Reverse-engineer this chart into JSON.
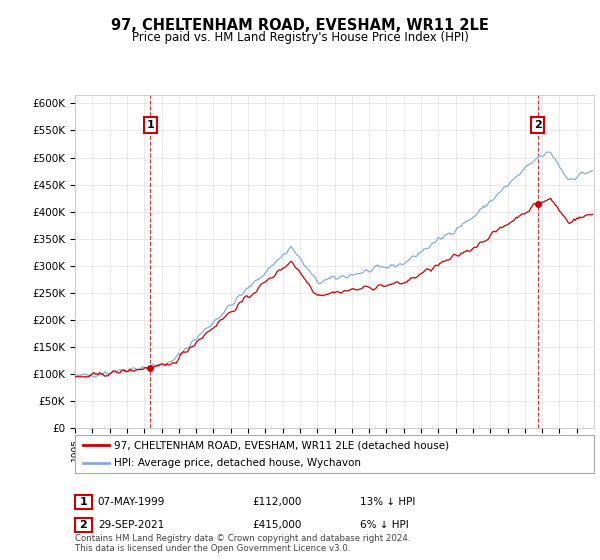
{
  "title": "97, CHELTENHAM ROAD, EVESHAM, WR11 2LE",
  "subtitle": "Price paid vs. HM Land Registry's House Price Index (HPI)",
  "ylabel_ticks": [
    "£0",
    "£50K",
    "£100K",
    "£150K",
    "£200K",
    "£250K",
    "£300K",
    "£350K",
    "£400K",
    "£450K",
    "£500K",
    "£550K",
    "£600K"
  ],
  "ytick_values": [
    0,
    50000,
    100000,
    150000,
    200000,
    250000,
    300000,
    350000,
    400000,
    450000,
    500000,
    550000,
    600000
  ],
  "ylim": [
    0,
    615000
  ],
  "xlim": [
    1995,
    2025
  ],
  "sale1_year": 1999.35,
  "sale1_price": 112000,
  "sale2_year": 2021.75,
  "sale2_price": 415000,
  "legend_line1": "97, CHELTENHAM ROAD, EVESHAM, WR11 2LE (detached house)",
  "legend_line2": "HPI: Average price, detached house, Wychavon",
  "footer": "Contains HM Land Registry data © Crown copyright and database right 2024.\nThis data is licensed under the Open Government Licence v3.0.",
  "line_color_property": "#cc0000",
  "line_color_hpi": "#88aadd",
  "background_color": "#ffffff",
  "grid_color": "#e0e0e0",
  "box_label1": "1",
  "box_label2": "2",
  "ann1_date": "07-MAY-1999",
  "ann1_price": "£112,000",
  "ann1_hpi": "13% ↓ HPI",
  "ann2_date": "29-SEP-2021",
  "ann2_price": "£415,000",
  "ann2_hpi": "6% ↓ HPI"
}
